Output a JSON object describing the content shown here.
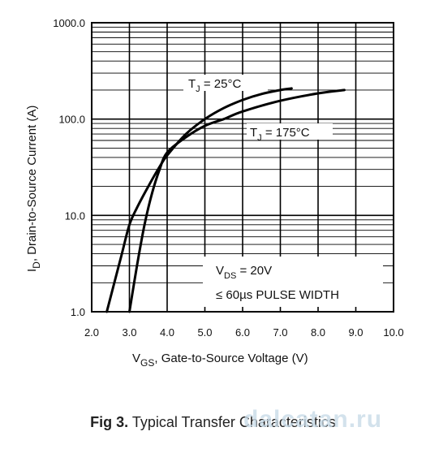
{
  "chart_data": {
    "type": "line",
    "xlabel": "V_GS, Gate-to-Source Voltage (V)",
    "ylabel": "I_D, Drain-to-Source Current (A)",
    "xlim": [
      2.0,
      10.0
    ],
    "ylim": [
      1.0,
      1000.0
    ],
    "yscale": "log",
    "x_ticks": [
      "2.0",
      "3.0",
      "4.0",
      "5.0",
      "6.0",
      "7.0",
      "8.0",
      "9.0",
      "10.0"
    ],
    "y_ticks": [
      "1.0",
      "10.0",
      "100.0",
      "1000.0"
    ],
    "grid": true,
    "series": [
      {
        "name": "T_J = 25°C",
        "x": [
          2.4,
          2.6,
          2.8,
          3.0,
          3.2,
          3.5,
          3.8,
          4.0,
          4.5,
          5.0,
          5.5,
          6.0,
          6.5,
          7.0,
          7.3
        ],
        "y": [
          1.0,
          2.0,
          4.0,
          8.0,
          12.0,
          20.0,
          32.0,
          42.0,
          70.0,
          100.0,
          130.0,
          158.0,
          182.0,
          200.0,
          208.0
        ]
      },
      {
        "name": "T_J = 175°C",
        "x": [
          3.0,
          3.2,
          3.4,
          3.6,
          3.8,
          4.0,
          4.5,
          5.0,
          5.5,
          6.0,
          7.0,
          8.0,
          8.7
        ],
        "y": [
          1.0,
          3.0,
          8.0,
          17.0,
          30.0,
          45.0,
          65.0,
          85.0,
          100.0,
          120.0,
          155.0,
          185.0,
          200.0
        ]
      }
    ],
    "annotations": {
      "t25": {
        "pre": "T",
        "sub": "J",
        "post": " = 25°C"
      },
      "t175": {
        "pre": "T",
        "sub": "J",
        "post": " = 175°C"
      },
      "vds": {
        "pre": "V",
        "sub": "DS",
        "post": " = 20V"
      },
      "pulse": "≤ 60µs PULSE WIDTH"
    },
    "axis_text": {
      "x_pre": "V",
      "x_sub": "GS",
      "x_post": ", Gate-to-Source Voltage (V)",
      "y_pre": "I",
      "y_sub": "D",
      "y_post": ", Drain-to-Source Current  (A)"
    }
  },
  "caption": {
    "number": "Fig 3.",
    "text": "Typical Transfer Characteristics"
  },
  "watermark": "dalcatan.ru"
}
